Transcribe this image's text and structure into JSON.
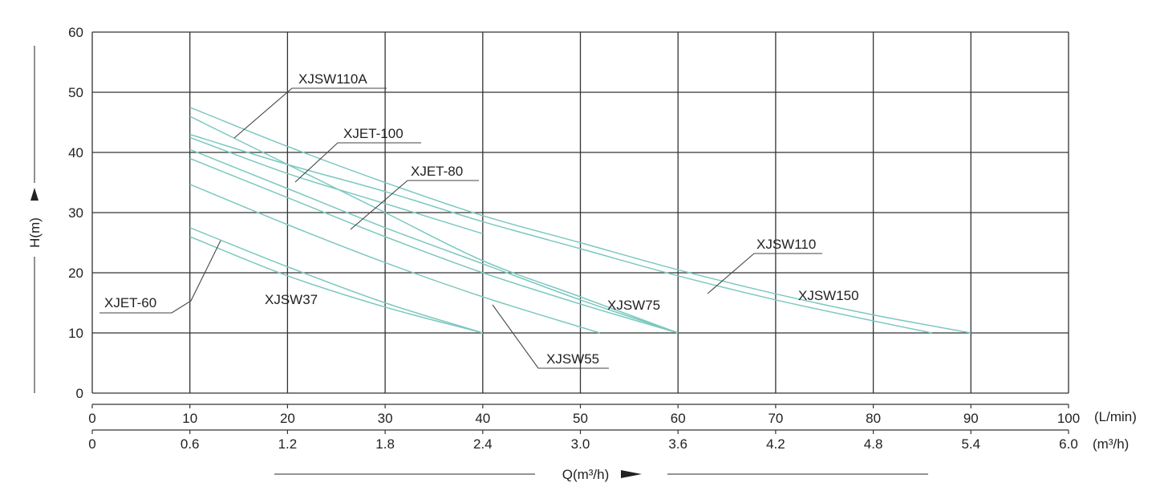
{
  "chart_data": {
    "type": "line",
    "title": "",
    "ylabel": "H(m)",
    "xlabel": "Q(m³/h)",
    "ylim": [
      0,
      60
    ],
    "xlim": [
      0,
      100
    ],
    "grid": true,
    "y_ticks": [
      "0",
      "10",
      "20",
      "30",
      "40",
      "50",
      "60"
    ],
    "x_ticks_lmin": [
      "0",
      "10",
      "20",
      "30",
      "40",
      "50",
      "60",
      "70",
      "80",
      "90",
      "100"
    ],
    "x_unit_lmin": "(L/min)",
    "x_ticks_m3h": [
      "0",
      "0.6",
      "1.2",
      "1.8",
      "2.4",
      "3.0",
      "3.6",
      "4.2",
      "4.8",
      "5.4",
      "6.0"
    ],
    "x_unit_m3h": "(m³/h)",
    "line_color": "#7cc8c0",
    "series": [
      {
        "name": "XJET-60",
        "x": [
          10,
          20,
          30,
          40
        ],
        "y": [
          27.5,
          21,
          15,
          10
        ]
      },
      {
        "name": "XJSW37",
        "x": [
          10,
          20,
          30,
          40
        ],
        "y": [
          26,
          19.5,
          14.3,
          10
        ]
      },
      {
        "name": "XJSW55",
        "x": [
          10,
          20,
          30,
          40,
          52
        ],
        "y": [
          34.7,
          28,
          21.7,
          16,
          10
        ]
      },
      {
        "name": "XJET-80",
        "x": [
          10,
          20,
          30,
          40,
          50,
          60
        ],
        "y": [
          39,
          32.5,
          26,
          20,
          14.8,
          10
        ]
      },
      {
        "name": "XJSW75",
        "x": [
          10,
          20,
          30,
          40,
          50,
          60
        ],
        "y": [
          40.5,
          34,
          27.5,
          21.5,
          15.5,
          10
        ]
      },
      {
        "name": "XJET-100",
        "x": [
          10,
          20,
          30,
          40
        ],
        "y": [
          42.5,
          36.5,
          31.5,
          26.5
        ]
      },
      {
        "name": "XJSW110A",
        "x": [
          10,
          20,
          30,
          40,
          50,
          60
        ],
        "y": [
          46,
          38,
          30,
          22,
          16,
          10
        ]
      },
      {
        "name": "XJSW110",
        "x": [
          10,
          20,
          30,
          40,
          50,
          60,
          70,
          80,
          86
        ],
        "y": [
          43,
          38,
          33.5,
          28.5,
          24,
          19.5,
          15.5,
          12,
          10
        ]
      },
      {
        "name": "XJSW150",
        "x": [
          10,
          20,
          30,
          40,
          50,
          60,
          70,
          80,
          90
        ],
        "y": [
          47.5,
          41,
          35,
          29.5,
          25,
          20.5,
          16.5,
          13,
          10
        ]
      }
    ],
    "annotations": [
      {
        "text": "XJSW110A"
      },
      {
        "text": "XJET-100"
      },
      {
        "text": "XJET-80"
      },
      {
        "text": "XJSW110"
      },
      {
        "text": "XJSW150"
      },
      {
        "text": "XJSW75"
      },
      {
        "text": "XJSW37"
      },
      {
        "text": "XJET-60"
      },
      {
        "text": "XJSW55"
      }
    ]
  }
}
